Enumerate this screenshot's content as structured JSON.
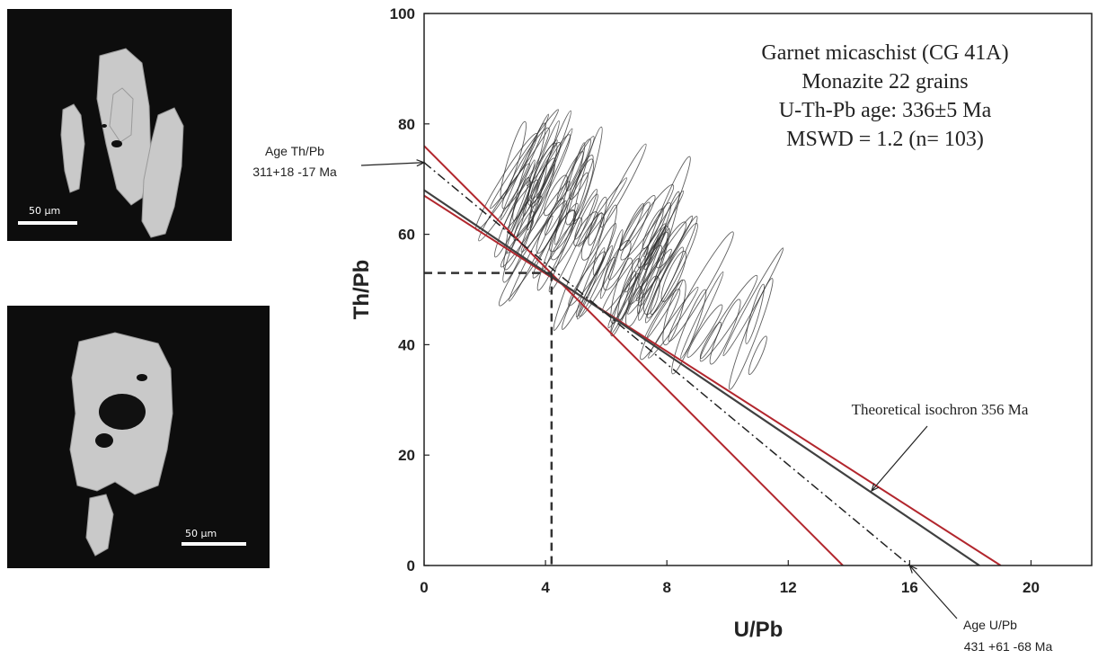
{
  "images": [
    {
      "scale_label": "50 µm"
    },
    {
      "scale_label": "50 µm"
    }
  ],
  "chart_data": {
    "type": "scatter",
    "xlabel": "U/Pb",
    "ylabel": "Th/Pb",
    "xlim": [
      0,
      22
    ],
    "ylim": [
      0,
      100
    ],
    "xticks": [
      0,
      4,
      8,
      12,
      16,
      20
    ],
    "yticks": [
      0,
      20,
      40,
      60,
      80,
      100
    ],
    "info_lines": [
      "Garnet micaschist (CG 41A)",
      "Monazite 22 grains",
      "U-Th-Pb age: 336±5 Ma",
      "MSWD = 1.2 (n= 103)"
    ],
    "annotations": {
      "thpb_title": "Age Th/Pb",
      "thpb_value": "311+18 -17 Ma",
      "upb_title": "Age U/Pb",
      "upb_value": "431 +61 -68 Ma",
      "isochron": "Theoretical isochron 356 Ma"
    },
    "lines": {
      "theoretical_isochron": {
        "x": [
          0,
          18.3
        ],
        "y": [
          68,
          0
        ],
        "color": "#404040"
      },
      "regression": {
        "x": [
          0,
          16
        ],
        "y": [
          73,
          0
        ],
        "style": "dash-dot"
      },
      "envelope_upper": {
        "x": [
          0,
          19
        ],
        "y": [
          67,
          0
        ],
        "color": "#b2262d"
      },
      "envelope_lower": {
        "x": [
          0,
          13.8
        ],
        "y": [
          76,
          0
        ],
        "color": "#b2262d"
      }
    },
    "intercept": {
      "x": 4.2,
      "y": 53
    },
    "colors": {
      "ellipse": "#2a2a2a",
      "envelope": "#b2262d",
      "isochron": "#404040"
    }
  }
}
